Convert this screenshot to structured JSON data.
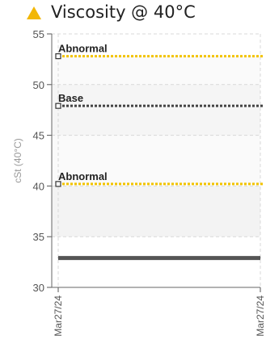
{
  "header": {
    "title": "Viscosity @ 40°C",
    "icon": "warning-triangle-icon",
    "icon_color": "#f2b705"
  },
  "chart_data": {
    "type": "line",
    "title": "Viscosity @ 40°C",
    "ylabel": "cSt (40°C)",
    "xlabel": "",
    "ylim": [
      30,
      55
    ],
    "yticks": [
      30,
      35,
      40,
      45,
      50,
      55
    ],
    "xticks": [
      "Mar27/24",
      "Mar27/24"
    ],
    "grid": true,
    "limits": [
      {
        "label": "Abnormal",
        "value": 52.8,
        "color": "#f2c300"
      },
      {
        "label": "Base",
        "value": 47.9,
        "color": "#444444"
      },
      {
        "label": "Abnormal",
        "value": 40.2,
        "color": "#f2c300"
      }
    ],
    "series": [
      {
        "values": [
          32.9,
          32.9
        ],
        "color": "#555555"
      }
    ],
    "shaded_band": [
      40.2,
      52.8
    ]
  }
}
